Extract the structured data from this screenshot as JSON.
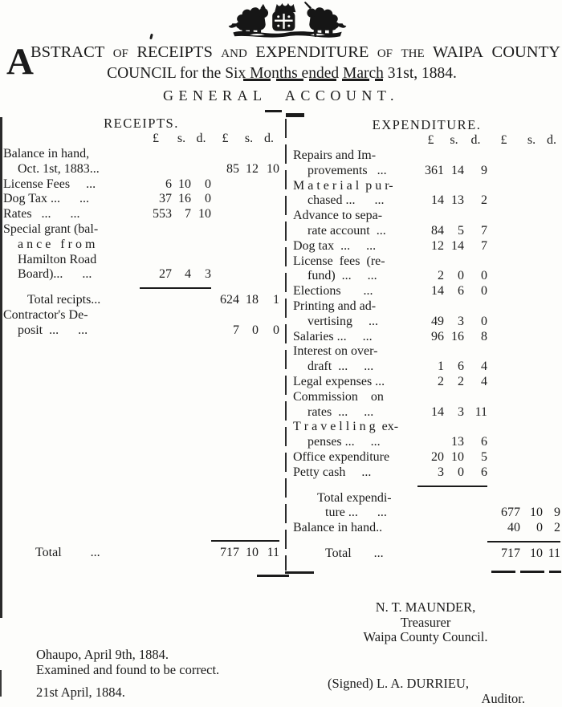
{
  "page": {
    "ink_color": "#1b1b1b",
    "paper_color": "#fdfdfb"
  },
  "masthead": {
    "crest": "royal-coat-of-arms-lion-shield-unicorn"
  },
  "header": {
    "dropcap": "A",
    "words": [
      {
        "t": "BSTRACT"
      },
      {
        "t": "OF"
      },
      {
        "t": "RECEIPTS"
      },
      {
        "t": "AND"
      },
      {
        "t": "EXPENDITURE"
      },
      {
        "t": "OF"
      },
      {
        "t": "THE"
      },
      {
        "t": "WAIPA"
      },
      {
        "t": "COUNTY"
      }
    ],
    "line2": "COUNCIL for the Six Months ended March 31st, 1884.",
    "section_title": "GENERAL ACCOUNT."
  },
  "receipts": {
    "title": "RECEIPTS.",
    "money_headers": [
      "£",
      "s.",
      "d.",
      "£",
      "s.",
      "d."
    ],
    "rows": [
      {
        "l": "Balance in hand,"
      },
      {
        "l": "Oct. 1st, 1883...",
        "i": 1,
        "a": [
          "",
          "",
          "",
          "85",
          "12",
          "10"
        ]
      },
      {
        "l": "License Fees     ...",
        "a": [
          "6",
          "10",
          "0",
          "",
          "",
          ""
        ]
      },
      {
        "l": "Dog Tax ...      ...",
        "a": [
          "37",
          "16",
          "0",
          "",
          "",
          ""
        ]
      },
      {
        "l": "Rates   ...      ...",
        "a": [
          "553",
          "7",
          "10",
          "",
          "",
          ""
        ]
      },
      {
        "l": "Special grant (bal-"
      },
      {
        "l": "a n c e   f r o m",
        "i": 1
      },
      {
        "l": "Hamilton Road",
        "i": 1
      },
      {
        "l": "Board)...      ...",
        "i": 1,
        "a": [
          "27",
          "4",
          "3",
          "",
          "",
          ""
        ]
      },
      {
        "rule": "g1"
      },
      {
        "l": "Total recipts...",
        "i": 2,
        "a": [
          "",
          "",
          "",
          "624",
          "18",
          "1"
        ]
      },
      {
        "l": "Contractor's De-"
      },
      {
        "l": "posit  ...      ...",
        "i": 1,
        "a": [
          "",
          "",
          "",
          "7",
          "0",
          "0"
        ]
      },
      {
        "space": 245
      },
      {
        "rule": "g2"
      },
      {
        "l": "Total         ...",
        "i": 3,
        "a": [
          "",
          "",
          "",
          "717",
          "10",
          "11"
        ]
      }
    ]
  },
  "expenditure": {
    "title": "EXPENDITURE.",
    "money_headers": [
      "£",
      "s.",
      "d.",
      "£",
      "s.",
      "d."
    ],
    "rows": [
      {
        "l": "Repairs and Im-"
      },
      {
        "l": "provements   ...",
        "i": 1,
        "a": [
          "361",
          "14",
          "9",
          "",
          "",
          ""
        ]
      },
      {
        "l": "M a t e r i a l  p u r-"
      },
      {
        "l": "chased ...      ...",
        "i": 1,
        "a": [
          "14",
          "13",
          "2",
          "",
          "",
          ""
        ]
      },
      {
        "l": "Advance to sepa-"
      },
      {
        "l": "rate account  ...",
        "i": 1,
        "a": [
          "84",
          "5",
          "7",
          "",
          "",
          ""
        ]
      },
      {
        "l": "Dog tax  ...     ...",
        "a": [
          "12",
          "14",
          "7",
          "",
          "",
          ""
        ]
      },
      {
        "l": "License  fees  (re-"
      },
      {
        "l": "fund)  ...     ...",
        "i": 1,
        "a": [
          "2",
          "0",
          "0",
          "",
          "",
          ""
        ]
      },
      {
        "l": "Elections       ...",
        "a": [
          "14",
          "6",
          "0",
          "",
          "",
          ""
        ]
      },
      {
        "l": "Printing and ad-"
      },
      {
        "l": "vertising     ...",
        "i": 1,
        "a": [
          "49",
          "3",
          "0",
          "",
          "",
          ""
        ]
      },
      {
        "l": "Salaries ...     ...",
        "a": [
          "96",
          "16",
          "8",
          "",
          "",
          ""
        ]
      },
      {
        "l": "Interest on over-"
      },
      {
        "l": "draft  ...     ...",
        "i": 1,
        "a": [
          "1",
          "6",
          "4",
          "",
          "",
          ""
        ]
      },
      {
        "l": "Legal expenses ...",
        "a": [
          "2",
          "2",
          "4",
          "",
          "",
          ""
        ]
      },
      {
        "l": "Commission    on"
      },
      {
        "l": "rates  ...     ...",
        "i": 1,
        "a": [
          "14",
          "3",
          "11",
          "",
          "",
          ""
        ]
      },
      {
        "l": "T r a v e l l i n g  ex-"
      },
      {
        "l": "penses ...     ...",
        "i": 1,
        "a": [
          "",
          "13",
          "6",
          "",
          "",
          ""
        ]
      },
      {
        "l": "Office expenditure",
        "a": [
          "20",
          "10",
          "5",
          "",
          "",
          ""
        ]
      },
      {
        "l": "Petty cash     ...",
        "a": [
          "3",
          "0",
          "6",
          "",
          "",
          ""
        ]
      },
      {
        "rule": "g1"
      },
      {
        "l": "Total expendi-",
        "i": 2
      },
      {
        "l": "ture ...      ...",
        "i": 3,
        "a": [
          "",
          "",
          "",
          "677",
          "10",
          "9"
        ]
      },
      {
        "l": "Balance in hand..",
        "a": [
          "",
          "",
          "",
          "40",
          "0",
          "2"
        ]
      },
      {
        "rule": "g2"
      },
      {
        "l": "Total       ...",
        "i": 3,
        "a": [
          "",
          "",
          "",
          "717",
          "10",
          "11"
        ]
      }
    ]
  },
  "footer": {
    "treasurer_name": "N. T. MAUNDER,",
    "treasurer_title": "Treasurer",
    "treasurer_org": "Waipa County Council.",
    "place_date": "Ohaupo, April 9th, 1884.",
    "examined": "Examined and found to be correct.",
    "signed": "(Signed) L. A. DURRIEU,",
    "auditor_title": "Auditor.",
    "audit_date": "21st April, 1884."
  }
}
